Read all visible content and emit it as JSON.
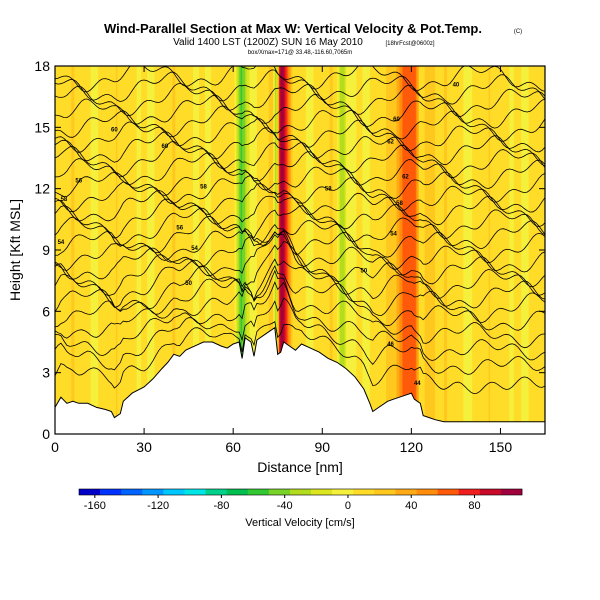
{
  "title": "Wind-Parallel Section at Max W: Vertical Velocity & Pot.Temp.",
  "title_units": "(C)",
  "subtitle": "Valid 1400 LST (1200Z) SUN 16 May 2010",
  "subtitle_suffix": "[18hrFcst@0600z]",
  "subtitle2": "box/Xmax=171@ 33.48,-116.60,7065m",
  "chart_data": {
    "type": "heatmap",
    "title": "Wind-Parallel Section at Max W: Vertical Velocity & Pot.Temp.",
    "xlabel": "Distance [nm]",
    "ylabel": "Height [Kft MSL]",
    "xlim": [
      0,
      165
    ],
    "ylim": [
      0,
      18
    ],
    "xticks": [
      0,
      30,
      60,
      90,
      120,
      150
    ],
    "yticks": [
      0,
      3,
      6,
      9,
      12,
      15,
      18
    ],
    "colorbar": {
      "label": "Vertical Velocity [cm/s]",
      "range": [
        -170,
        110
      ],
      "ticks": [
        -160,
        -120,
        -80,
        -40,
        0,
        40,
        80
      ],
      "colors": [
        "#0000c8",
        "#0032ff",
        "#0064ff",
        "#0096ff",
        "#00c8ff",
        "#00e6e6",
        "#00d28c",
        "#00be50",
        "#32c832",
        "#78d228",
        "#b4dc1e",
        "#dce61e",
        "#f5f03c",
        "#ffdc28",
        "#ffc81e",
        "#ffaa14",
        "#ff8c0a",
        "#ff5a0a",
        "#f01e1e",
        "#c80a28",
        "#a0003c"
      ]
    },
    "terrain_kft": [
      [
        0,
        1.3
      ],
      [
        2,
        1.8
      ],
      [
        4,
        1.5
      ],
      [
        6,
        1.6
      ],
      [
        8,
        1.5
      ],
      [
        11,
        1.5
      ],
      [
        14,
        1.3
      ],
      [
        17,
        1.2
      ],
      [
        19,
        1.1
      ],
      [
        20,
        0.8
      ],
      [
        21,
        0.9
      ],
      [
        22,
        1.0
      ],
      [
        23,
        1.6
      ],
      [
        26,
        2.0
      ],
      [
        30,
        2.3
      ],
      [
        33,
        2.7
      ],
      [
        36,
        3.2
      ],
      [
        38,
        3.5
      ],
      [
        40,
        3.9
      ],
      [
        42,
        3.8
      ],
      [
        44,
        4.1
      ],
      [
        47,
        4.3
      ],
      [
        50,
        4.5
      ],
      [
        53,
        4.5
      ],
      [
        56,
        4.3
      ],
      [
        58,
        4.2
      ],
      [
        60,
        4.4
      ],
      [
        62,
        4.5
      ],
      [
        63,
        3.7
      ],
      [
        64,
        4.7
      ],
      [
        66,
        4.5
      ],
      [
        67,
        3.8
      ],
      [
        68,
        4.6
      ],
      [
        71,
        4.9
      ],
      [
        73,
        5.1
      ],
      [
        74,
        5.2
      ],
      [
        75,
        3.9
      ],
      [
        76,
        4.0
      ],
      [
        77,
        4.5
      ],
      [
        79,
        4.3
      ],
      [
        81,
        4.1
      ],
      [
        83,
        4.4
      ],
      [
        86,
        4.2
      ],
      [
        89,
        4.0
      ],
      [
        92,
        3.7
      ],
      [
        95,
        3.5
      ],
      [
        98,
        3.2
      ],
      [
        101,
        2.8
      ],
      [
        104,
        2.2
      ],
      [
        106,
        1.5
      ],
      [
        107,
        1.1
      ],
      [
        109,
        1.3
      ],
      [
        112,
        1.6
      ],
      [
        114,
        1.7
      ],
      [
        118,
        1.9
      ],
      [
        120,
        2.0
      ],
      [
        121,
        1.7
      ],
      [
        123,
        1.5
      ],
      [
        124,
        0.9
      ],
      [
        126,
        0.8
      ],
      [
        128,
        0.7
      ],
      [
        131,
        0.6
      ],
      [
        134,
        0.6
      ],
      [
        140,
        0.6
      ],
      [
        150,
        0.6
      ],
      [
        160,
        0.6
      ],
      [
        165,
        0.6
      ]
    ],
    "w_features": [
      {
        "name": "main-updraft",
        "x": [
          72,
          80
        ],
        "peak_cm_s": 100
      },
      {
        "name": "main-downdraft",
        "x": [
          73,
          76
        ],
        "peak_cm_s": -120
      },
      {
        "name": "wave-updraft-lee",
        "x": [
          113,
          127
        ],
        "peak_cm_s": 70
      },
      {
        "name": "wave-downdraft-upwind",
        "x": [
          60,
          66
        ],
        "peak_cm_s": -60
      },
      {
        "name": "wave-downdraft-mid",
        "x": [
          95,
          99
        ],
        "peak_cm_s": -50
      },
      {
        "name": "wave-downdraft-east",
        "x": [
          121,
          125
        ],
        "peak_cm_s": -40
      }
    ],
    "isentrope_labels": [
      {
        "text": "58",
        "x": 3,
        "y": 11.4
      },
      {
        "text": "56",
        "x": 8,
        "y": 12.3
      },
      {
        "text": "60",
        "x": 20,
        "y": 14.8
      },
      {
        "text": "54",
        "x": 2,
        "y": 9.3
      },
      {
        "text": "56",
        "x": 42,
        "y": 10.0
      },
      {
        "text": "58",
        "x": 50,
        "y": 12.0
      },
      {
        "text": "60",
        "x": 37,
        "y": 14.0
      },
      {
        "text": "54",
        "x": 47,
        "y": 9.0
      },
      {
        "text": "50",
        "x": 45,
        "y": 7.3
      },
      {
        "text": "58",
        "x": 92,
        "y": 11.9
      },
      {
        "text": "60",
        "x": 115,
        "y": 15.3
      },
      {
        "text": "62",
        "x": 113,
        "y": 14.2
      },
      {
        "text": "62",
        "x": 118,
        "y": 12.5
      },
      {
        "text": "58",
        "x": 116,
        "y": 11.2
      },
      {
        "text": "54",
        "x": 114,
        "y": 9.7
      },
      {
        "text": "50",
        "x": 104,
        "y": 7.9
      },
      {
        "text": "46",
        "x": 113,
        "y": 4.3
      },
      {
        "text": "44",
        "x": 122,
        "y": 2.4
      },
      {
        "text": "40",
        "x": 135,
        "y": 17.0
      }
    ],
    "isentrope_levels_kft": [
      2.0,
      3.0,
      3.8,
      4.6,
      5.4,
      6.0,
      6.6,
      7.2,
      7.8,
      8.4,
      9.0,
      9.6,
      10.2,
      10.8,
      11.4,
      12.0,
      12.6,
      13.2,
      13.8,
      14.4,
      15.0,
      15.6,
      16.2,
      16.8,
      17.4
    ]
  }
}
